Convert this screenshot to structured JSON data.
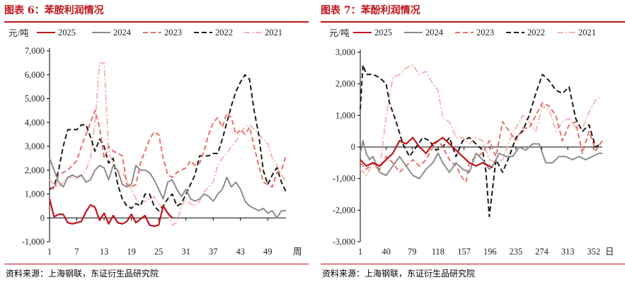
{
  "charts": [
    {
      "title": "图表 6：苯胺利润情况",
      "source": "资料来源：上海钢联，东证衍生品研究院"
    },
    {
      "title": "图表 7：苯酚利润情况",
      "source": "资料来源：上海钢联，东证衍生品研究院"
    }
  ],
  "colors": {
    "brand_red": "#c0141b",
    "s2025": "#c0141b",
    "s2024": "#8c8c8c",
    "s2023": "#e8706a",
    "s2022": "#1a1a1a",
    "s2021": "#f5b8b6"
  },
  "chart_data": [
    {
      "type": "line",
      "unit_label": "元/吨",
      "x_axis_label": "周",
      "xlim": [
        1,
        53
      ],
      "x_ticks": [
        1,
        7,
        13,
        19,
        25,
        31,
        37,
        43,
        49
      ],
      "ylim": [
        -1000,
        7000
      ],
      "y_ticks": [
        -1000,
        0,
        1000,
        2000,
        3000,
        4000,
        5000,
        6000,
        7000
      ],
      "y_tick_labels": [
        "-1,000",
        "0",
        "1,000",
        "2,000",
        "3,000",
        "4,000",
        "5,000",
        "6,000",
        "7,000"
      ],
      "grid": false,
      "legend_position": "top",
      "series": [
        {
          "name": "2025",
          "style": "solid",
          "color": "#c0141b",
          "x": [
            1,
            2,
            3,
            4,
            5,
            6,
            7,
            8,
            9,
            10,
            11,
            12,
            13,
            14,
            15,
            16,
            17,
            18,
            19,
            20,
            21,
            22,
            23,
            24,
            25,
            26,
            27,
            28
          ],
          "y": [
            800,
            50,
            150,
            150,
            -200,
            -250,
            -200,
            -150,
            250,
            550,
            450,
            -100,
            200,
            -250,
            100,
            -200,
            -250,
            -150,
            150,
            -200,
            -50,
            100,
            -300,
            -350,
            -300,
            500,
            200,
            0
          ]
        },
        {
          "name": "2024",
          "style": "solid",
          "color": "#8c8c8c",
          "x": [
            1,
            2,
            3,
            4,
            5,
            6,
            7,
            8,
            9,
            10,
            11,
            12,
            13,
            14,
            15,
            16,
            17,
            18,
            19,
            20,
            21,
            22,
            23,
            24,
            25,
            26,
            27,
            28,
            29,
            30,
            31,
            32,
            33,
            34,
            35,
            36,
            37,
            38,
            39,
            40,
            41,
            42,
            43,
            44,
            45,
            46,
            47,
            48,
            49,
            50,
            51,
            52,
            53
          ],
          "y": [
            2500,
            2000,
            1500,
            1300,
            1700,
            1800,
            1700,
            1800,
            1500,
            1600,
            2000,
            2200,
            2100,
            1600,
            2200,
            2000,
            1400,
            1300,
            1400,
            2200,
            2000,
            2000,
            1900,
            1600,
            1200,
            800,
            1500,
            1600,
            1200,
            900,
            1200,
            800,
            700,
            800,
            1000,
            900,
            700,
            1000,
            1200,
            1700,
            1300,
            1500,
            1200,
            700,
            500,
            400,
            300,
            400,
            200,
            300,
            0,
            300,
            300
          ]
        },
        {
          "name": "2023",
          "style": "dashed",
          "color": "#e8706a",
          "x": [
            1,
            2,
            3,
            4,
            5,
            6,
            7,
            8,
            9,
            10,
            11,
            12,
            13,
            14,
            15,
            16,
            17,
            18,
            19,
            20,
            21,
            22,
            23,
            24,
            25,
            26,
            27,
            28,
            29,
            30,
            31,
            32,
            33,
            34,
            35,
            36,
            37,
            38,
            39,
            40,
            41,
            42,
            43,
            44,
            45,
            46,
            47,
            48,
            49,
            50,
            51,
            52,
            53
          ],
          "y": [
            1300,
            1200,
            1800,
            1900,
            2000,
            2200,
            2400,
            3000,
            3500,
            4000,
            4500,
            3800,
            2500,
            3000,
            2800,
            2700,
            2600,
            1400,
            1300,
            1400,
            2300,
            2800,
            3300,
            3600,
            3500,
            2500,
            1800,
            1700,
            1900,
            2000,
            2100,
            2400,
            2200,
            2300,
            2800,
            3500,
            4000,
            4200,
            3800,
            4400,
            4200,
            3500,
            3700,
            3500,
            3800,
            3000,
            2200,
            1500,
            1400,
            1300,
            1900,
            2000,
            2600
          ]
        },
        {
          "name": "2022",
          "style": "dashed",
          "color": "#1a1a1a",
          "x": [
            1,
            2,
            3,
            4,
            5,
            6,
            7,
            8,
            9,
            10,
            11,
            12,
            13,
            14,
            15,
            16,
            17,
            18,
            19,
            20,
            21,
            22,
            23,
            24,
            25,
            26,
            27,
            28,
            29,
            30,
            31,
            32,
            33,
            34,
            35,
            36,
            37,
            38,
            39,
            40,
            41,
            42,
            43,
            44,
            45,
            46,
            47,
            48,
            49,
            50,
            51,
            52,
            53
          ],
          "y": [
            1200,
            1300,
            2000,
            3000,
            3700,
            3700,
            3700,
            3900,
            3900,
            3400,
            2800,
            3300,
            3000,
            2300,
            2500,
            1400,
            800,
            500,
            400,
            600,
            500,
            1000,
            1000,
            500,
            300,
            500,
            800,
            1000,
            500,
            600,
            1000,
            1400,
            1800,
            2600,
            2600,
            2600,
            2700,
            2700,
            3300,
            4000,
            4700,
            5300,
            5700,
            6000,
            5800,
            4500,
            3500,
            2000,
            1400,
            1800,
            2100,
            1500,
            1100
          ]
        },
        {
          "name": "2021",
          "style": "dashdot",
          "color": "#f5b8b6",
          "x": [
            1,
            2,
            3,
            4,
            5,
            6,
            7,
            8,
            9,
            10,
            11,
            12,
            13,
            14,
            15,
            16,
            17,
            18,
            19,
            20,
            21,
            22,
            23,
            24,
            25,
            26,
            27,
            28,
            29,
            30,
            31,
            32,
            33,
            34,
            35,
            36,
            37,
            38,
            39,
            40,
            41,
            42,
            43,
            44,
            45,
            46,
            47,
            48,
            49,
            50,
            51,
            52,
            53
          ],
          "y": [
            1600,
            1400,
            1300,
            1500,
            1700,
            1700,
            1600,
            1800,
            2000,
            2500,
            4000,
            6500,
            6500,
            2800,
            2200,
            2000,
            1900,
            1600,
            1200,
            800,
            600,
            700,
            800,
            900,
            600,
            400,
            200,
            -300,
            -200,
            500,
            800,
            600,
            500,
            700,
            1100,
            1300,
            1500,
            2200,
            2500,
            2700,
            3000,
            3200,
            3600,
            3800,
            3900,
            3700,
            3500,
            3300,
            3100,
            2500,
            2200,
            1800,
            1500
          ]
        }
      ]
    },
    {
      "type": "line",
      "unit_label": "元/吨",
      "x_axis_label": "日",
      "xlim": [
        1,
        365
      ],
      "x_ticks": [
        1,
        40,
        79,
        118,
        157,
        196,
        235,
        274,
        313,
        352
      ],
      "ylim": [
        -3000,
        3000
      ],
      "y_ticks": [
        -3000,
        -2000,
        -1000,
        0,
        1000,
        2000,
        3000
      ],
      "y_tick_labels": [
        "-3,000",
        "-2,000",
        "-1,000",
        "0",
        "1,000",
        "2,000",
        "3,000"
      ],
      "grid": false,
      "legend_position": "top",
      "series": [
        {
          "name": "2025",
          "style": "solid",
          "color": "#c0141b",
          "x": [
            1,
            10,
            20,
            30,
            40,
            50,
            55,
            60,
            70,
            80,
            90,
            100,
            110,
            118,
            125,
            135,
            145,
            155,
            165,
            175,
            185,
            195,
            200
          ],
          "y": [
            -400,
            -600,
            -500,
            -600,
            -400,
            -200,
            0,
            200,
            100,
            300,
            0,
            -200,
            100,
            200,
            300,
            100,
            -100,
            -300,
            -500,
            -600,
            -500,
            -600,
            -650
          ]
        },
        {
          "name": "2024",
          "style": "solid",
          "color": "#8c8c8c",
          "x": [
            1,
            5,
            10,
            15,
            20,
            30,
            40,
            50,
            60,
            70,
            80,
            90,
            100,
            110,
            118,
            125,
            135,
            145,
            155,
            165,
            175,
            185,
            195,
            200,
            210,
            220,
            230,
            240,
            250,
            260,
            270,
            280,
            290,
            300,
            310,
            320,
            330,
            340,
            350,
            360,
            365
          ],
          "y": [
            -200,
            200,
            -200,
            -400,
            -300,
            -800,
            -900,
            -600,
            -300,
            -600,
            -900,
            -1000,
            -700,
            -500,
            -200,
            -500,
            -800,
            -500,
            -700,
            -800,
            -200,
            -400,
            -700,
            -600,
            -200,
            -300,
            -300,
            0,
            -100,
            100,
            100,
            -500,
            -500,
            -300,
            -300,
            -400,
            -300,
            -400,
            -300,
            -200,
            -200
          ]
        },
        {
          "name": "2023",
          "style": "dashed",
          "color": "#e8706a",
          "x": [
            1,
            10,
            20,
            30,
            40,
            50,
            60,
            70,
            80,
            90,
            100,
            110,
            118,
            125,
            135,
            145,
            155,
            160,
            165,
            175,
            185,
            195,
            205,
            215,
            225,
            235,
            245,
            255,
            265,
            275,
            285,
            295,
            305,
            315,
            325,
            335,
            345,
            355,
            365
          ],
          "y": [
            -500,
            -700,
            -500,
            -700,
            -300,
            -500,
            -800,
            -600,
            -400,
            -600,
            -400,
            0,
            200,
            0,
            -400,
            -600,
            -1000,
            -1100,
            -500,
            -300,
            -200,
            200,
            -300,
            800,
            500,
            200,
            600,
            600,
            1000,
            1400,
            1300,
            1000,
            200,
            700,
            800,
            -200,
            500,
            -100,
            200
          ]
        },
        {
          "name": "2022",
          "style": "dashed",
          "color": "#1a1a1a",
          "x": [
            1,
            5,
            10,
            20,
            30,
            40,
            45,
            55,
            65,
            75,
            85,
            95,
            105,
            115,
            125,
            135,
            145,
            155,
            165,
            175,
            185,
            190,
            195,
            205,
            215,
            225,
            235,
            245,
            255,
            265,
            275,
            285,
            295,
            305,
            315,
            325,
            335,
            345,
            355,
            362
          ],
          "y": [
            1200,
            2600,
            2300,
            2300,
            2200,
            2000,
            1400,
            800,
            100,
            -300,
            0,
            300,
            200,
            -100,
            0,
            300,
            -300,
            200,
            300,
            100,
            -100,
            -800,
            -2200,
            -400,
            -800,
            -300,
            300,
            500,
            1000,
            1700,
            2300,
            2100,
            1800,
            1700,
            1900,
            900,
            500,
            700,
            0,
            100
          ]
        },
        {
          "name": "2021",
          "style": "dashdot",
          "color": "#f5b8b6",
          "x": [
            1,
            10,
            20,
            30,
            40,
            50,
            60,
            70,
            80,
            90,
            100,
            110,
            118,
            125,
            135,
            145,
            155,
            165,
            175,
            185,
            195,
            205,
            215,
            225,
            235,
            245,
            255,
            265,
            275,
            285,
            295,
            305,
            315,
            325,
            335,
            345,
            355,
            362
          ],
          "y": [
            -700,
            -900,
            -500,
            -800,
            1000,
            2200,
            2300,
            2500,
            2600,
            2300,
            2400,
            2000,
            1800,
            900,
            800,
            300,
            300,
            100,
            300,
            200,
            -400,
            -500,
            -400,
            200,
            600,
            1000,
            800,
            500,
            1300,
            1200,
            500,
            800,
            900,
            600,
            600,
            1100,
            1500,
            1600
          ]
        }
      ]
    }
  ]
}
